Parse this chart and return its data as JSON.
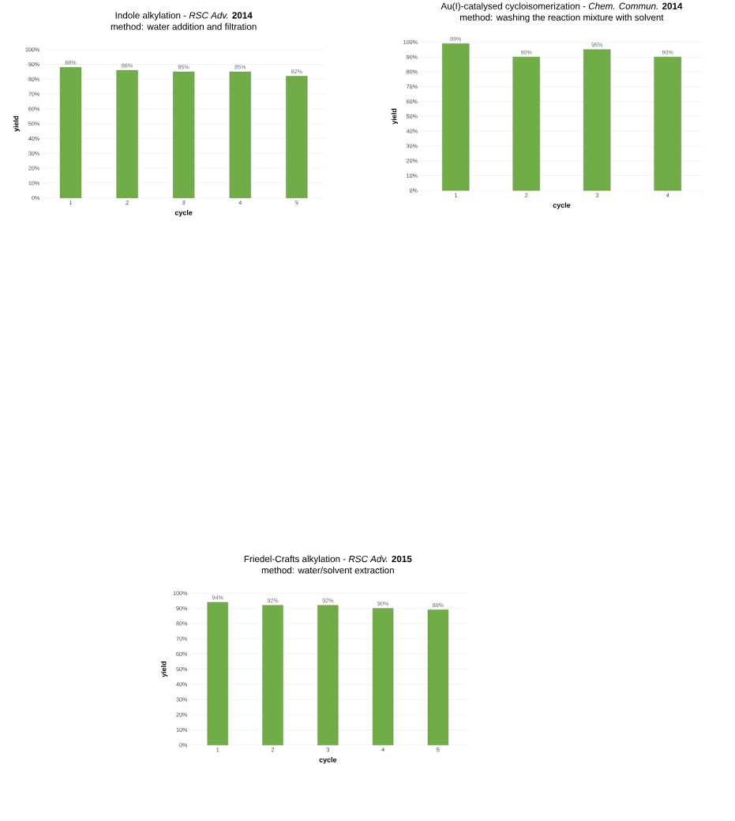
{
  "chart_data": [
    {
      "type": "bar",
      "title": "Indole alkylation - *RSC Adv.* **2014**",
      "subtitle": "method: water addition and filtration",
      "xlabel": "cycle",
      "ylabel": "yield",
      "categories": [
        "1",
        "2",
        "3",
        "4",
        "5"
      ],
      "values": [
        88,
        86,
        85,
        85,
        82
      ],
      "value_labels": [
        "88%",
        "86%",
        "85%",
        "85%",
        "82%"
      ],
      "color": "#70ad47",
      "ylim": [
        0,
        100
      ],
      "yticks": [
        {
          "value": 0,
          "label": "0%"
        },
        {
          "value": 10,
          "label": "10%"
        },
        {
          "value": 20,
          "label": "20%"
        },
        {
          "value": 30,
          "label": "30%"
        },
        {
          "value": 40,
          "label": "40%"
        },
        {
          "value": 50,
          "label": "50%"
        },
        {
          "value": 60,
          "label": "60%"
        },
        {
          "value": 70,
          "label": "70%"
        },
        {
          "value": 80,
          "label": "80%"
        },
        {
          "value": 90,
          "label": "90%"
        },
        {
          "value": 100,
          "label": "100%"
        }
      ],
      "grid": "y"
    },
    {
      "type": "bar",
      "title": "Au(I)-catalysed cycloisomerization - *Chem. Commun.* **2014**",
      "subtitle": "method: washing the reaction mixture with solvent",
      "xlabel": "cycle",
      "ylabel": "yield",
      "categories": [
        "1",
        "2",
        "3",
        "4"
      ],
      "values": [
        99,
        90,
        95,
        90
      ],
      "value_labels": [
        "99%",
        "90%",
        "95%",
        "90%"
      ],
      "color": "#70ad47",
      "ylim": [
        0,
        100
      ],
      "yticks": [
        {
          "value": 0,
          "label": "0%"
        },
        {
          "value": 10,
          "label": "10%"
        },
        {
          "value": 20,
          "label": "20%"
        },
        {
          "value": 30,
          "label": "30%"
        },
        {
          "value": 40,
          "label": "40%"
        },
        {
          "value": 50,
          "label": "50%"
        },
        {
          "value": 60,
          "label": "60%"
        },
        {
          "value": 70,
          "label": "70%"
        },
        {
          "value": 80,
          "label": "80%"
        },
        {
          "value": 90,
          "label": "90%"
        },
        {
          "value": 100,
          "label": "100%"
        }
      ],
      "grid": "y"
    },
    {
      "type": "bar",
      "title": "Friedel-Crafts alkylation - *RSC Adv.* **2015**",
      "subtitle": "method: water/solvent extraction",
      "xlabel": "cycle",
      "ylabel": "yield",
      "categories": [
        "1",
        "2",
        "3",
        "4",
        "5"
      ],
      "values": [
        94,
        92,
        92,
        90,
        89
      ],
      "value_labels": [
        "94%",
        "92%",
        "92%",
        "90%",
        "89%"
      ],
      "color": "#70ad47",
      "ylim": [
        0,
        100
      ],
      "yticks": [
        {
          "value": 0,
          "label": "0%"
        },
        {
          "value": 10,
          "label": "10%"
        },
        {
          "value": 20,
          "label": "20%"
        },
        {
          "value": 30,
          "label": "30%"
        },
        {
          "value": 40,
          "label": "40%"
        },
        {
          "value": 50,
          "label": "50%"
        },
        {
          "value": 60,
          "label": "60%"
        },
        {
          "value": 70,
          "label": "70%"
        },
        {
          "value": 80,
          "label": "80%"
        },
        {
          "value": 90,
          "label": "90%"
        },
        {
          "value": 100,
          "label": "100%"
        }
      ],
      "grid": "y"
    }
  ]
}
